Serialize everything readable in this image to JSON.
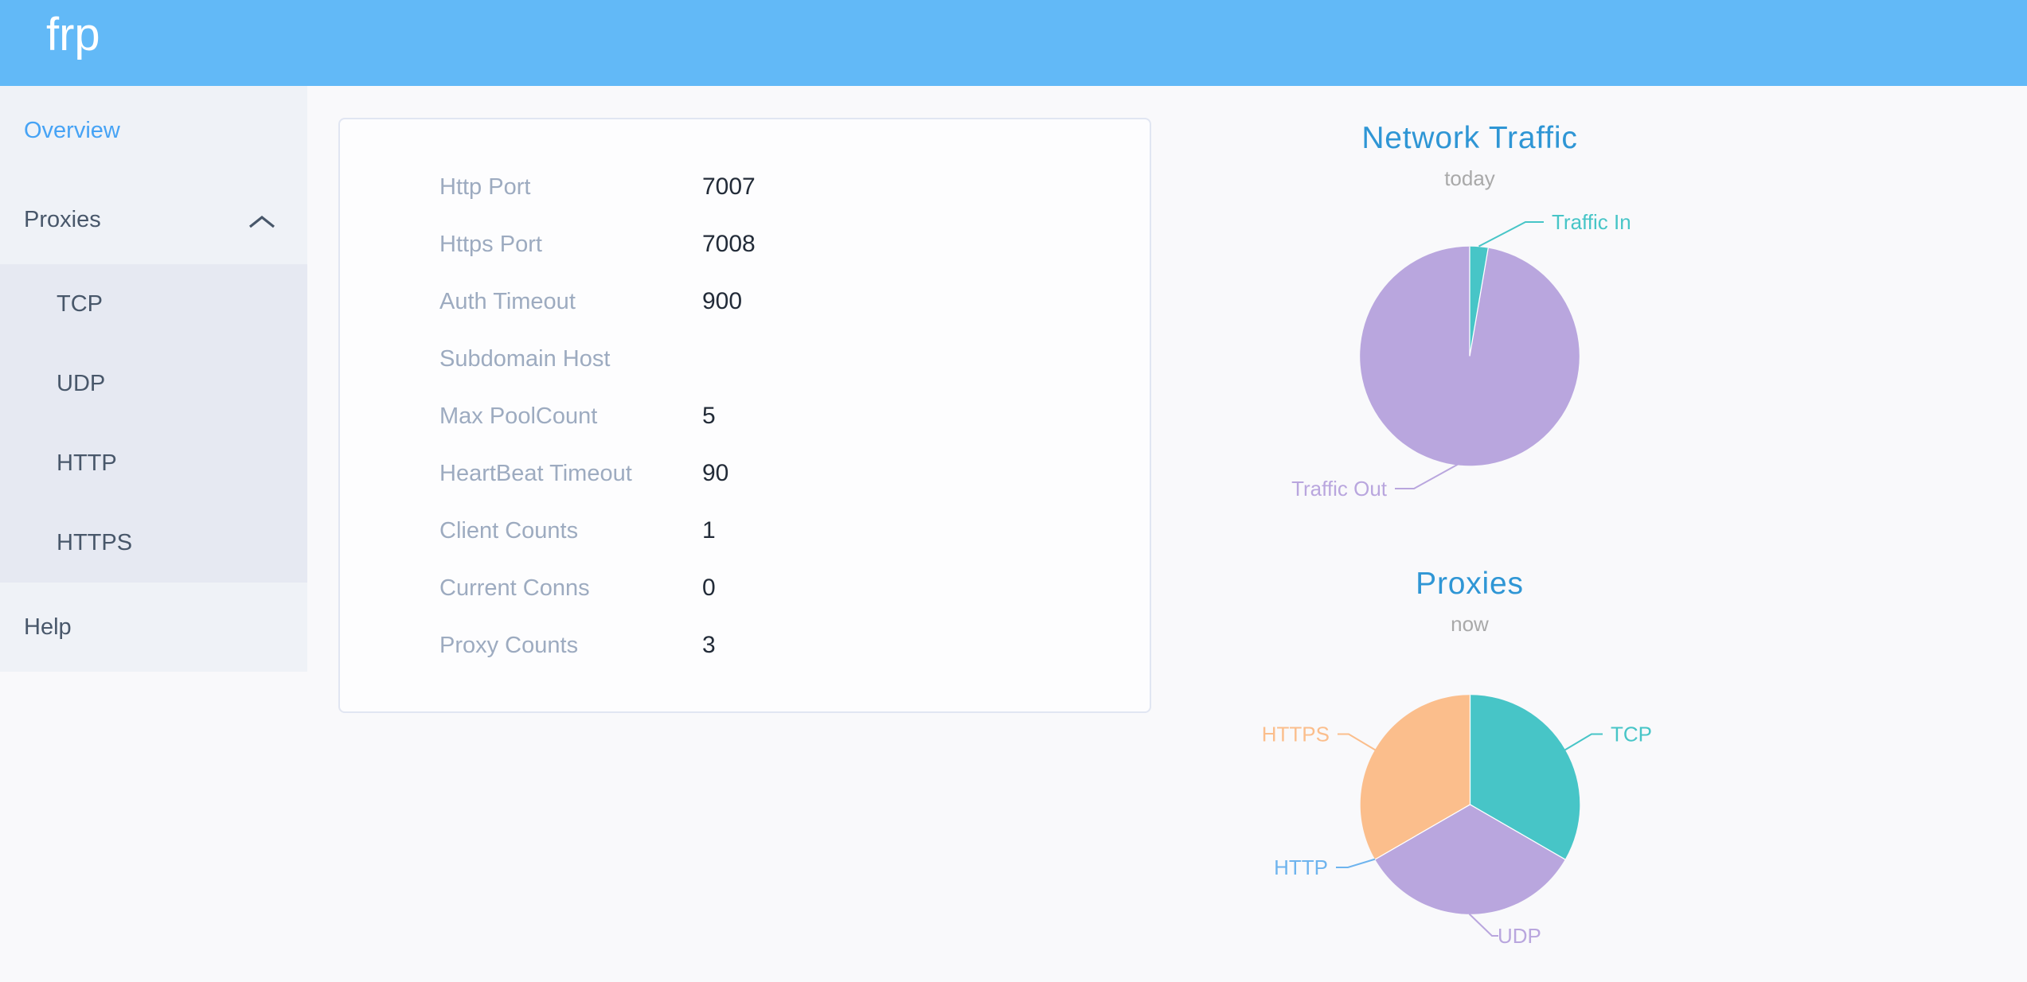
{
  "header": {
    "logo": "frp"
  },
  "sidebar": {
    "items": [
      {
        "label": "Overview",
        "active": true
      },
      {
        "label": "Proxies",
        "expanded": true
      },
      {
        "label": "TCP"
      },
      {
        "label": "UDP"
      },
      {
        "label": "HTTP"
      },
      {
        "label": "HTTPS"
      },
      {
        "label": "Help"
      }
    ]
  },
  "overview": {
    "rows": [
      {
        "label": "Http Port",
        "value": "7007"
      },
      {
        "label": "Https Port",
        "value": "7008"
      },
      {
        "label": "Auth Timeout",
        "value": "900"
      },
      {
        "label": "Subdomain Host",
        "value": ""
      },
      {
        "label": "Max PoolCount",
        "value": "5"
      },
      {
        "label": "HeartBeat Timeout",
        "value": "90"
      },
      {
        "label": "Client Counts",
        "value": "1"
      },
      {
        "label": "Current Conns",
        "value": "0"
      },
      {
        "label": "Proxy Counts",
        "value": "3"
      }
    ]
  },
  "chart_data": [
    {
      "type": "pie",
      "title": "Network Traffic",
      "subtitle": "today",
      "legend_position": "outside-labels",
      "series": [
        {
          "name": "Traffic In",
          "share_percent": 2.7,
          "color": "#47c5c7"
        },
        {
          "name": "Traffic Out",
          "share_percent": 97.3,
          "color": "#b9a6de"
        }
      ]
    },
    {
      "type": "pie",
      "title": "Proxies",
      "subtitle": "now",
      "legend_position": "outside-labels",
      "series": [
        {
          "name": "TCP",
          "value": 1,
          "color": "#47c5c7"
        },
        {
          "name": "UDP",
          "value": 1,
          "color": "#b9a6de"
        },
        {
          "name": "HTTP",
          "value": 0,
          "color": "#6eb4ee"
        },
        {
          "name": "HTTPS",
          "value": 1,
          "color": "#fbbe8c"
        }
      ]
    }
  ],
  "colors": {
    "header_bg": "#62b9f7",
    "sidebar_bg": "#eff2f7",
    "submenu_bg": "#e6e9f2",
    "menu_text": "#48576a",
    "menu_active": "#46a3f5",
    "card_border": "#e1e6f2",
    "form_label": "#9dabc0",
    "form_value": "#222b38",
    "chart_title": "#2f96d5",
    "chart_subtitle": "#a9a9a9"
  }
}
